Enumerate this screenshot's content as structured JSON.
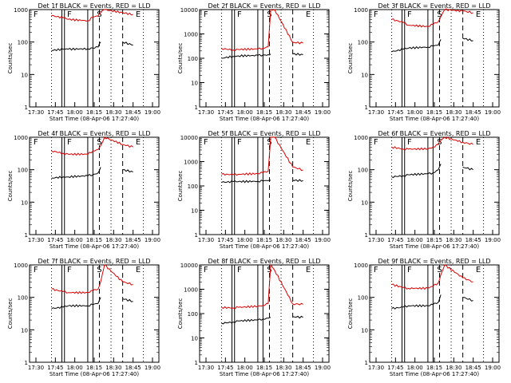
{
  "chart_data": [
    {
      "type": "line",
      "title": "Det 1f BLACK = Events, RED = LLD",
      "xlabel": "Start Time (08-Apr-06 17:27:40)",
      "ylabel": "Counts/sec",
      "x_ticks": [
        "17:30",
        "17:45",
        "18:00",
        "18:15",
        "18:30",
        "18:45",
        "19:00"
      ],
      "y_ticks": [
        "1",
        "10",
        "100",
        "1000"
      ],
      "ylim": [
        1,
        1000
      ],
      "y_scale": "log",
      "markers": [
        "F",
        "F",
        "S",
        "E"
      ],
      "series": [
        {
          "name": "BLACK = Events",
          "color": "#000000",
          "values": [
            55,
            60,
            60,
            62,
            65,
            70,
            100,
            null,
            100,
            80
          ]
        },
        {
          "name": "RED = LLD",
          "color": "#dd0000",
          "values": [
            650,
            560,
            500,
            450,
            580,
            640,
            800,
            1000,
            800,
            700
          ]
        }
      ]
    },
    {
      "type": "line",
      "title": "Det 2f BLACK = Events, RED = LLD",
      "xlabel": "Start Time (08-Apr-06 17:27:40)",
      "ylabel": "Counts/sec",
      "x_ticks": [
        "17:30",
        "17:45",
        "18:00",
        "18:15",
        "18:30",
        "18:45",
        "19:00"
      ],
      "y_ticks": [
        "1",
        "10",
        "100",
        "1000",
        "10000"
      ],
      "ylim": [
        1,
        10000
      ],
      "y_scale": "log",
      "markers": [
        "F",
        "F",
        "S",
        "E"
      ],
      "series": [
        {
          "name": "BLACK = Events",
          "color": "#000000",
          "values": [
            100,
            120,
            125,
            130,
            135,
            140,
            150,
            null,
            150,
            140
          ]
        },
        {
          "name": "RED = LLD",
          "color": "#dd0000",
          "values": [
            250,
            220,
            230,
            240,
            260,
            300,
            10000,
            10000,
            450,
            420
          ]
        }
      ]
    },
    {
      "type": "line",
      "title": "Det 3f BLACK = Events, RED = LLD",
      "xlabel": "Start Time (08-Apr-06 17:27:40)",
      "ylabel": "Counts/sec",
      "x_ticks": [
        "17:30",
        "17:45",
        "18:00",
        "18:15",
        "18:30",
        "18:45",
        "19:00"
      ],
      "y_ticks": [
        "1",
        "10",
        "100",
        "1000"
      ],
      "ylim": [
        1,
        1000
      ],
      "y_scale": "log",
      "markers": [
        "F",
        "F",
        "S",
        "E"
      ],
      "series": [
        {
          "name": "BLACK = Events",
          "color": "#000000",
          "values": [
            50,
            60,
            65,
            70,
            75,
            80,
            120,
            null,
            130,
            110
          ]
        },
        {
          "name": "RED = LLD",
          "color": "#dd0000",
          "values": [
            500,
            400,
            330,
            300,
            350,
            420,
            600,
            1000,
            900,
            800
          ]
        }
      ]
    },
    {
      "type": "line",
      "title": "Det 4f BLACK = Events, RED = LLD",
      "xlabel": "Start Time (08-Apr-06 17:27:40)",
      "ylabel": "Counts/sec",
      "x_ticks": [
        "17:30",
        "17:45",
        "18:00",
        "18:15",
        "18:30",
        "18:45",
        "19:00"
      ],
      "y_ticks": [
        "1",
        "10",
        "100",
        "1000"
      ],
      "ylim": [
        1,
        1000
      ],
      "y_scale": "log",
      "markers": [
        "F",
        "F",
        "S",
        "E"
      ],
      "series": [
        {
          "name": "BLACK = Events",
          "color": "#000000",
          "values": [
            55,
            60,
            60,
            65,
            70,
            80,
            120,
            null,
            100,
            85
          ]
        },
        {
          "name": "RED = LLD",
          "color": "#dd0000",
          "values": [
            380,
            320,
            300,
            300,
            380,
            420,
            550,
            1000,
            600,
            500
          ]
        }
      ]
    },
    {
      "type": "line",
      "title": "Det 5f BLACK = Events, RED = LLD",
      "xlabel": "Start Time (08-Apr-06 17:27:40)",
      "ylabel": "Counts/sec",
      "x_ticks": [
        "17:30",
        "17:45",
        "18:00",
        "18:15",
        "18:30",
        "18:45",
        "19:00"
      ],
      "y_ticks": [
        "1",
        "10",
        "100",
        "1000",
        "10000"
      ],
      "ylim": [
        1,
        10000
      ],
      "y_scale": "log",
      "markers": [
        "F",
        "F",
        "S",
        "E"
      ],
      "series": [
        {
          "name": "BLACK = Events",
          "color": "#000000",
          "values": [
            140,
            150,
            150,
            155,
            160,
            165,
            170,
            null,
            170,
            165
          ]
        },
        {
          "name": "RED = LLD",
          "color": "#dd0000",
          "values": [
            300,
            290,
            300,
            320,
            350,
            400,
            10000,
            10000,
            600,
            450
          ]
        }
      ]
    },
    {
      "type": "line",
      "title": "Det 6f BLACK = Events, RED = LLD",
      "xlabel": "Start Time (08-Apr-06 17:27:40)",
      "ylabel": "Counts/sec",
      "x_ticks": [
        "17:30",
        "17:45",
        "18:00",
        "18:15",
        "18:30",
        "18:45",
        "19:00"
      ],
      "y_ticks": [
        "1",
        "10",
        "100",
        "1000"
      ],
      "ylim": [
        1,
        1000
      ],
      "y_scale": "log",
      "markers": [
        "F",
        "F",
        "S",
        "E"
      ],
      "series": [
        {
          "name": "BLACK = Events",
          "color": "#000000",
          "values": [
            60,
            65,
            70,
            75,
            80,
            100,
            150,
            null,
            120,
            100
          ]
        },
        {
          "name": "RED = LLD",
          "color": "#dd0000",
          "values": [
            500,
            430,
            430,
            440,
            500,
            600,
            800,
            1000,
            700,
            600
          ]
        }
      ]
    },
    {
      "type": "line",
      "title": "Det 7f BLACK = Events, RED = LLD",
      "xlabel": "Start Time (08-Apr-06 17:27:40)",
      "ylabel": "Counts/sec",
      "x_ticks": [
        "17:30",
        "17:45",
        "18:00",
        "18:15",
        "18:30",
        "18:45",
        "19:00"
      ],
      "y_ticks": [
        "1",
        "10",
        "100",
        "1000"
      ],
      "ylim": [
        1,
        1000
      ],
      "y_scale": "log",
      "markers": [
        "F",
        "F",
        "S",
        "E"
      ],
      "series": [
        {
          "name": "BLACK = Events",
          "color": "#000000",
          "values": [
            45,
            50,
            55,
            55,
            60,
            65,
            100,
            null,
            90,
            75
          ]
        },
        {
          "name": "RED = LLD",
          "color": "#dd0000",
          "values": [
            180,
            150,
            140,
            140,
            160,
            180,
            300,
            1000,
            300,
            250
          ]
        }
      ]
    },
    {
      "type": "line",
      "title": "Det 8f BLACK = Events, RED = LLD",
      "xlabel": "Start Time (08-Apr-06 17:27:40)",
      "ylabel": "Counts/sec",
      "x_ticks": [
        "17:30",
        "17:45",
        "18:00",
        "18:15",
        "18:30",
        "18:45",
        "19:00"
      ],
      "y_ticks": [
        "1",
        "10",
        "100",
        "1000",
        "10000"
      ],
      "ylim": [
        1,
        10000
      ],
      "y_scale": "log",
      "markers": [
        "F",
        "F",
        "S",
        "E"
      ],
      "series": [
        {
          "name": "BLACK = Events",
          "color": "#000000",
          "values": [
            40,
            45,
            50,
            55,
            60,
            65,
            70,
            null,
            75,
            70
          ]
        },
        {
          "name": "RED = LLD",
          "color": "#dd0000",
          "values": [
            180,
            170,
            180,
            200,
            220,
            260,
            10000,
            6000,
            250,
            240
          ]
        }
      ]
    },
    {
      "type": "line",
      "title": "Det 9f BLACK = Events, RED = LLD",
      "xlabel": "Start Time (08-Apr-06 17:27:40)",
      "ylabel": "Counts/sec",
      "x_ticks": [
        "17:30",
        "17:45",
        "18:00",
        "18:15",
        "18:30",
        "18:45",
        "19:00"
      ],
      "y_ticks": [
        "1",
        "10",
        "100",
        "1000"
      ],
      "ylim": [
        1,
        1000
      ],
      "y_scale": "log",
      "markers": [
        "F",
        "F",
        "S",
        "E"
      ],
      "series": [
        {
          "name": "BLACK = Events",
          "color": "#000000",
          "values": [
            45,
            50,
            55,
            55,
            60,
            70,
            120,
            null,
            100,
            80
          ]
        },
        {
          "name": "RED = LLD",
          "color": "#dd0000",
          "values": [
            250,
            200,
            190,
            190,
            220,
            280,
            500,
            1000,
            400,
            300
          ]
        }
      ]
    }
  ]
}
